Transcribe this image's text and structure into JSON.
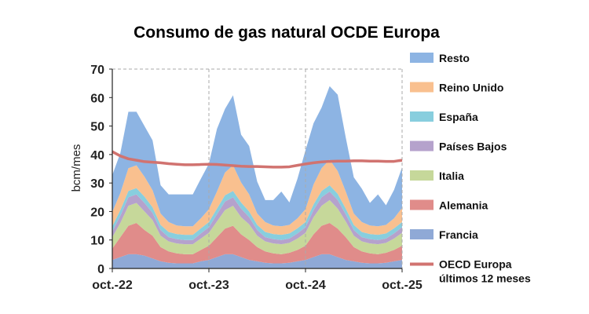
{
  "chart_data": {
    "type": "area",
    "title": "Consumo de gas natural OCDE Europa",
    "ylabel": "bcm/mes",
    "xlabel": "",
    "ylim": [
      0,
      70
    ],
    "yticks": [
      0,
      10,
      20,
      30,
      40,
      50,
      60,
      70
    ],
    "xtick_labels": [
      "oct.-22",
      "oct.-23",
      "oct.-24",
      "oct.-25"
    ],
    "x_start": "2022-10",
    "x_end": "2025-10",
    "grid": "dashed vertical at yearly ticks",
    "legend_position": "right",
    "stacked": true,
    "series": [
      {
        "name": "Francia",
        "color": "#8fa9d6",
        "values": [
          3,
          4,
          5,
          5,
          4.5,
          3.5,
          2.5,
          2,
          1.8,
          1.8,
          1.8,
          2.5,
          3,
          4,
          5,
          5,
          4,
          3,
          2.5,
          2,
          1.8,
          1.8,
          2,
          2.5,
          3,
          4,
          5,
          5,
          4,
          3,
          2.5,
          2,
          1.8,
          1.8,
          2,
          2.5,
          3
        ]
      },
      {
        "name": "Alemania",
        "color": "#e08c8a",
        "values": [
          4,
          7,
          10,
          11,
          9,
          8,
          5,
          4,
          3.5,
          3.2,
          3.2,
          4,
          5,
          7,
          9,
          10,
          8,
          7,
          5,
          4,
          3.5,
          3.2,
          3.5,
          4,
          5,
          8,
          10,
          11,
          10,
          8,
          5,
          4,
          3.5,
          3.2,
          3.5,
          4,
          5
        ]
      },
      {
        "name": "Italia",
        "color": "#c6d89a",
        "values": [
          4,
          5,
          7,
          7,
          6.5,
          5.5,
          4,
          3.5,
          3.5,
          3.5,
          3.5,
          4,
          4.5,
          5.5,
          6.5,
          7,
          6,
          5.5,
          4,
          3.5,
          3.5,
          3.5,
          3.5,
          4,
          4.5,
          6,
          7,
          8,
          7,
          5.5,
          4,
          3.5,
          3.5,
          3.5,
          3.5,
          4,
          4.5
        ]
      },
      {
        "name": "Países Bajos",
        "color": "#b5a2cc",
        "values": [
          2,
          2.5,
          3,
          3,
          3,
          2.5,
          2,
          1.5,
          1.5,
          1.5,
          1.5,
          1.8,
          2,
          2.5,
          3,
          3,
          3,
          2.5,
          2,
          1.5,
          1.5,
          1.5,
          1.5,
          1.8,
          2,
          2.5,
          3,
          3,
          3,
          2.5,
          2,
          1.5,
          1.5,
          1.5,
          1.5,
          1.8,
          2
        ]
      },
      {
        "name": "España",
        "color": "#88cede",
        "values": [
          1.8,
          2,
          2.2,
          2.2,
          2.2,
          2,
          1.8,
          1.8,
          1.8,
          1.8,
          1.8,
          1.8,
          1.8,
          2,
          2.2,
          2.2,
          2.2,
          2,
          1.8,
          1.8,
          1.8,
          1.8,
          1.8,
          1.8,
          1.8,
          2,
          2.2,
          2.2,
          2.2,
          2,
          1.8,
          1.8,
          1.8,
          1.8,
          1.8,
          1.8,
          1.8
        ]
      },
      {
        "name": "Reino Unido",
        "color": "#f9c08f",
        "values": [
          5,
          6,
          8,
          8,
          7,
          6,
          4,
          3.5,
          3,
          3,
          3,
          3.5,
          4.5,
          6,
          8,
          9,
          7,
          6,
          4,
          3.5,
          3,
          3,
          3,
          3.5,
          4.5,
          7,
          8,
          9,
          8,
          6,
          4,
          3.5,
          3,
          3,
          3,
          3.5,
          5
        ]
      },
      {
        "name": "Resto",
        "color": "#8db4e3",
        "values": [
          13,
          14,
          19.8,
          18.8,
          17.8,
          17.5,
          9.9,
          9.7,
          10.9,
          11.2,
          11.2,
          13.9,
          16,
          22,
          22.3,
          24.6,
          16.8,
          17,
          11.2,
          7.7,
          8.9,
          12.2,
          7.9,
          13.9,
          20.7,
          21.5,
          21.3,
          25.8,
          26.8,
          19,
          12.7,
          11.7,
          7.9,
          11.2,
          6.9,
          10,
          14.2
        ]
      }
    ],
    "line_series": {
      "name": "OECD Europa últimos 12 meses",
      "color": "#d17370",
      "legend_lines": [
        "OECD Europa",
        "últimos 12 meses"
      ],
      "values": [
        41,
        39.5,
        38.5,
        38,
        37.5,
        37.3,
        37.1,
        36.8,
        36.6,
        36.4,
        36.4,
        36.5,
        36.6,
        36.5,
        36.3,
        36.1,
        35.9,
        35.8,
        35.8,
        35.7,
        35.6,
        35.6,
        35.7,
        36.2,
        36.7,
        37.1,
        37.4,
        37.6,
        37.7,
        37.7,
        37.8,
        37.8,
        37.7,
        37.7,
        37.6,
        37.6,
        38
      ]
    }
  }
}
